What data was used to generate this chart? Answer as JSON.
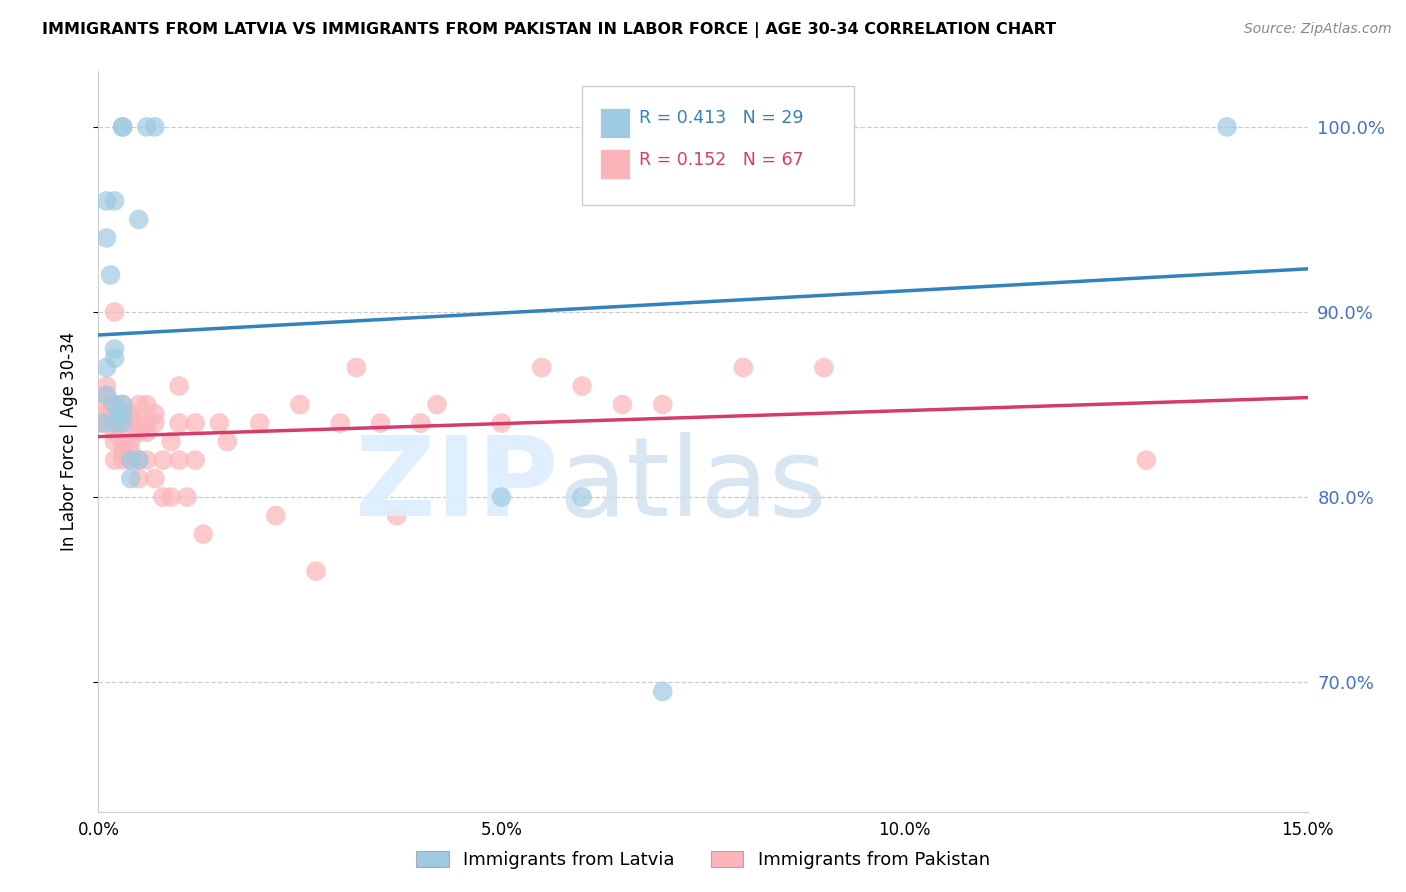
{
  "title": "IMMIGRANTS FROM LATVIA VS IMMIGRANTS FROM PAKISTAN IN LABOR FORCE | AGE 30-34 CORRELATION CHART",
  "source": "Source: ZipAtlas.com",
  "ylabel": "In Labor Force | Age 30-34",
  "xlim": [
    0.0,
    0.15
  ],
  "ylim": [
    0.63,
    1.03
  ],
  "yticks": [
    0.7,
    0.8,
    0.9,
    1.0
  ],
  "ytick_labels": [
    "70.0%",
    "80.0%",
    "90.0%",
    "100.0%"
  ],
  "xticks": [
    0.0,
    0.05,
    0.1,
    0.15
  ],
  "xtick_labels": [
    "0.0%",
    "5.0%",
    "10.0%",
    "15.0%"
  ],
  "latvia_R": 0.413,
  "latvia_N": 29,
  "pakistan_R": 0.152,
  "pakistan_N": 67,
  "latvia_color": "#9ecae1",
  "pakistan_color": "#fbb4b9",
  "latvia_line_color": "#3182bd",
  "pakistan_line_color": "#d63b6e",
  "legend_label_latvia": "Immigrants from Latvia",
  "legend_label_pakistan": "Immigrants from Pakistan",
  "latvia_x": [
    0.0005,
    0.001,
    0.001,
    0.001,
    0.001,
    0.0015,
    0.002,
    0.002,
    0.002,
    0.002,
    0.002,
    0.0025,
    0.003,
    0.003,
    0.003,
    0.003,
    0.003,
    0.004,
    0.004,
    0.005,
    0.005,
    0.006,
    0.007,
    0.05,
    0.06,
    0.07,
    0.071,
    0.072,
    0.14
  ],
  "latvia_y": [
    0.84,
    0.855,
    0.87,
    0.94,
    0.96,
    0.92,
    0.84,
    0.85,
    0.875,
    0.88,
    0.96,
    0.845,
    0.84,
    0.845,
    0.85,
    1.0,
    1.0,
    0.81,
    0.82,
    0.82,
    0.95,
    1.0,
    1.0,
    0.8,
    0.8,
    0.695,
    1.0,
    1.0,
    1.0
  ],
  "pakistan_x": [
    0.0005,
    0.001,
    0.001,
    0.001,
    0.001,
    0.001,
    0.002,
    0.002,
    0.002,
    0.002,
    0.002,
    0.002,
    0.002,
    0.003,
    0.003,
    0.003,
    0.003,
    0.003,
    0.003,
    0.004,
    0.004,
    0.004,
    0.004,
    0.004,
    0.005,
    0.005,
    0.005,
    0.005,
    0.005,
    0.006,
    0.006,
    0.006,
    0.006,
    0.007,
    0.007,
    0.007,
    0.008,
    0.008,
    0.009,
    0.009,
    0.01,
    0.01,
    0.01,
    0.011,
    0.012,
    0.012,
    0.013,
    0.015,
    0.016,
    0.02,
    0.022,
    0.025,
    0.027,
    0.03,
    0.032,
    0.035,
    0.037,
    0.04,
    0.042,
    0.05,
    0.055,
    0.06,
    0.065,
    0.07,
    0.08,
    0.09,
    0.13
  ],
  "pakistan_y": [
    0.84,
    0.845,
    0.84,
    0.85,
    0.855,
    0.86,
    0.82,
    0.83,
    0.835,
    0.84,
    0.845,
    0.85,
    0.9,
    0.82,
    0.825,
    0.83,
    0.84,
    0.845,
    0.85,
    0.82,
    0.825,
    0.83,
    0.84,
    0.845,
    0.81,
    0.82,
    0.835,
    0.84,
    0.85,
    0.82,
    0.835,
    0.84,
    0.85,
    0.81,
    0.84,
    0.845,
    0.8,
    0.82,
    0.8,
    0.83,
    0.82,
    0.84,
    0.86,
    0.8,
    0.82,
    0.84,
    0.78,
    0.84,
    0.83,
    0.84,
    0.79,
    0.85,
    0.76,
    0.84,
    0.87,
    0.84,
    0.79,
    0.84,
    0.85,
    0.84,
    0.87,
    0.86,
    0.85,
    0.85,
    0.87,
    0.87,
    0.82
  ]
}
